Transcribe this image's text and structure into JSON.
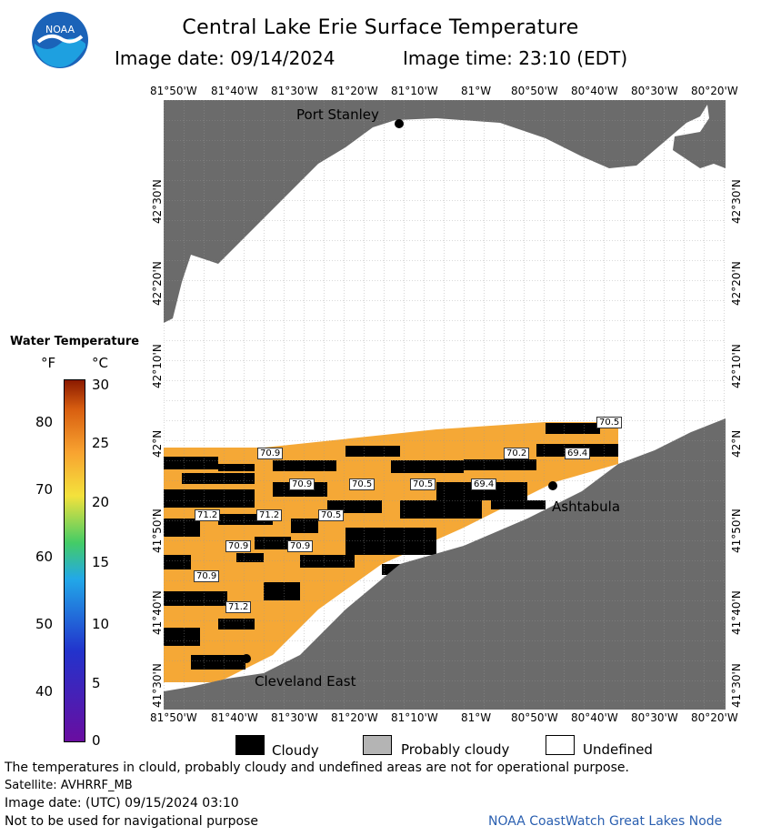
{
  "header": {
    "title": "Central Lake Erie Surface Temperature",
    "image_date": "Image date: 09/14/2024",
    "image_time": "Image time: 23:10 (EDT)"
  },
  "logo": {
    "text": "NOAA"
  },
  "longitude_ticks": [
    "81°50'W",
    "81°40'W",
    "81°30'W",
    "81°20'W",
    "81°10'W",
    "81°W",
    "80°50'W",
    "80°40'W",
    "80°30'W",
    "80°20'W"
  ],
  "latitude_ticks": [
    "42°30'N",
    "42°20'N",
    "42°10'N",
    "42°N",
    "41°50'N",
    "41°40'N",
    "41°30'N"
  ],
  "legend": {
    "title": "Water Temperature",
    "unit_f": "°F",
    "unit_c": "°C",
    "fahrenheit": [
      "80",
      "70",
      "60",
      "50",
      "40"
    ],
    "celsius": [
      "30",
      "25",
      "20",
      "15",
      "10",
      "5",
      "0"
    ],
    "colors": [
      "#6a0da0",
      "#2233cc",
      "#22a8e8",
      "#44cc66",
      "#f4e23c",
      "#f8a330",
      "#d85e10",
      "#8b1a00"
    ]
  },
  "places": {
    "port_stanley": "Port Stanley",
    "ashtabula": "Ashtabula",
    "cleveland_east": "Cleveland East"
  },
  "temperature_labels": [
    "70.5",
    "70.9",
    "70.2",
    "69.4",
    "70.9",
    "70.5",
    "70.5",
    "69.4",
    "71.2",
    "71.2",
    "70.5",
    "70.9",
    "70.9",
    "70.9",
    "71.2"
  ],
  "key": {
    "cloudy": "Cloudy",
    "probably_cloudy": "Probably cloudy",
    "undefined": "Undefined"
  },
  "footer": {
    "disclaimer": "The temperatures in clould, probably cloudy and undefined areas are not for operational purpose.",
    "satellite": "Satellite: AVHRRF_MB",
    "utc_date": "Image date: (UTC) 09/15/2024  03:10",
    "nav_note": "Not to be used for navigational purpose",
    "credit": "NOAA CoastWatch Great Lakes Node"
  },
  "colors": {
    "land": "#6b6b6b",
    "water_temp": "#f5a836",
    "cloud": "#000000",
    "grid": "#999999",
    "credit": "#2a5fb0"
  }
}
